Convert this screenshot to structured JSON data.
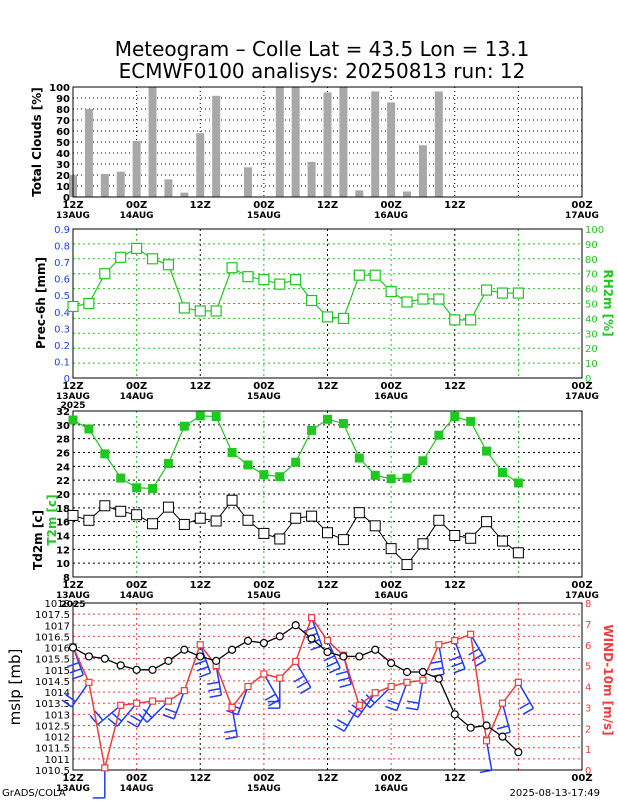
{
  "title_line1": "Meteogram – Colle Lat = 43.5 Lon = 13.1",
  "title_line2": "ECMWF0100 analisys: 20250813 run: 12",
  "footer_left": "GrADS/COLA",
  "footer_right": "2025-08-13-17:49",
  "colors": {
    "black": "#000000",
    "green": "#1ec81e",
    "blue": "#1e3cff",
    "red": "#f03c3c",
    "bar": "#a8a8a8"
  },
  "time_axis": {
    "tick_labels": [
      "12Z",
      "00Z",
      "12Z",
      "00Z",
      "12Z",
      "00Z",
      "12Z",
      "00Z"
    ],
    "date_labels": [
      "13AUG",
      "14AUG",
      "15AUG",
      "16AUG",
      "17AUG"
    ],
    "year_label": "2025"
  },
  "chart_data": [
    {
      "type": "bar",
      "ylabel": "Total Clouds [%]",
      "ylim": [
        0,
        100
      ],
      "yticks": [
        0,
        10,
        20,
        30,
        40,
        50,
        60,
        70,
        80,
        90,
        100
      ],
      "x_hours": [
        0,
        3,
        6,
        9,
        12,
        15,
        18,
        21,
        24,
        27,
        30,
        33,
        36,
        39,
        42,
        45,
        48,
        51,
        54,
        57,
        60,
        63,
        66,
        69,
        72,
        75,
        78,
        81,
        84,
        87,
        90,
        93,
        96
      ],
      "values": [
        20,
        80,
        21,
        23,
        51,
        100,
        16,
        4,
        58,
        92,
        0,
        27,
        0,
        100,
        100,
        32,
        95,
        100,
        6,
        96,
        86,
        5,
        47,
        96,
        0,
        0,
        0,
        0,
        0,
        0,
        0,
        0,
        0
      ]
    },
    {
      "type": "line",
      "ylabel_left": "Prec-6h [mm]",
      "ylabel_right": "RH2m [%]",
      "ylim_left": [
        0,
        0.9
      ],
      "yticks_left": [
        "0",
        "0.1",
        "0.2",
        "0.3",
        "0.4",
        "0.5",
        "0.6",
        "0.7",
        "0.8",
        "0.9"
      ],
      "ylim_right": [
        0,
        100
      ],
      "yticks_right": [
        0,
        10,
        20,
        30,
        40,
        50,
        60,
        70,
        80,
        90,
        100
      ],
      "series": [
        {
          "x_hours": [
            0,
            3,
            6,
            9,
            12,
            15,
            18,
            21,
            24,
            27,
            30,
            33,
            36,
            39,
            42,
            45,
            48,
            51,
            54,
            57,
            60,
            63,
            66,
            69,
            72,
            75,
            78,
            81,
            84,
            87,
            90,
            93,
            96
          ],
          "values": [
            48,
            50,
            70,
            81,
            87,
            80,
            76,
            47,
            45,
            45,
            74,
            68,
            66,
            63,
            66,
            52,
            41,
            40,
            69,
            69,
            58,
            51,
            53,
            53,
            39,
            39,
            59,
            57,
            57,
            null,
            null,
            null,
            null
          ]
        }
      ]
    },
    {
      "type": "line",
      "ylabel": "Td2m [c]",
      "ylabel2": "T2m [c]",
      "ylim": [
        8,
        32
      ],
      "yticks": [
        8,
        10,
        12,
        14,
        16,
        18,
        20,
        22,
        24,
        26,
        28,
        30,
        32
      ],
      "series": [
        {
          "name": "T2m",
          "x_hours": [
            0,
            3,
            6,
            9,
            12,
            15,
            18,
            21,
            24,
            27,
            30,
            33,
            36,
            39,
            42,
            45,
            48,
            51,
            54,
            57,
            60,
            63,
            66,
            69,
            72,
            75,
            78,
            81,
            84
          ],
          "values": [
            30.7,
            29.4,
            25.8,
            22.3,
            20.9,
            20.8,
            24.4,
            29.8,
            31.3,
            31.2,
            26.0,
            24.2,
            22.8,
            22.5,
            24.6,
            29.2,
            30.8,
            30.2,
            25.2,
            22.7,
            22.2,
            22.3,
            24.8,
            28.5,
            31.2,
            30.5,
            26.2,
            23.1,
            21.6
          ]
        },
        {
          "name": "Td2m",
          "x_hours": [
            0,
            3,
            6,
            9,
            12,
            15,
            18,
            21,
            24,
            27,
            30,
            33,
            36,
            39,
            42,
            45,
            48,
            51,
            54,
            57,
            60,
            63,
            66,
            69,
            72,
            75,
            78,
            81,
            84
          ],
          "values": [
            16.9,
            16.2,
            18.3,
            17.5,
            17.0,
            15.7,
            18.1,
            15.6,
            16.5,
            16.1,
            19.1,
            16.2,
            14.3,
            13.5,
            16.5,
            16.8,
            14.4,
            13.4,
            17.3,
            15.4,
            12.1,
            9.8,
            12.8,
            16.2,
            14.0,
            13.6,
            16.0,
            13.2,
            11.5
          ]
        }
      ]
    },
    {
      "type": "line",
      "ylabel_left": "mslp [mb]",
      "ylabel_right": "WIND-10m [m/s]",
      "ylim_left": [
        1010.5,
        1018
      ],
      "yticks_left": [
        "1010.5",
        "1011",
        "1011.5",
        "1012",
        "1012.5",
        "1013",
        "1013.5",
        "1014",
        "1014.5",
        "1015",
        "1015.5",
        "1016",
        "1016.5",
        "1017",
        "1017.5",
        "1018"
      ],
      "ylim_right": [
        0,
        8
      ],
      "yticks_right": [
        0,
        1,
        2,
        3,
        4,
        5,
        6,
        7,
        8
      ],
      "series": [
        {
          "name": "mslp",
          "x_hours": [
            0,
            3,
            6,
            9,
            12,
            15,
            18,
            21,
            24,
            27,
            30,
            33,
            36,
            39,
            42,
            45,
            48,
            51,
            54,
            57,
            60,
            63,
            66,
            69,
            72,
            75,
            78,
            81,
            84
          ],
          "values": [
            1016.0,
            1015.6,
            1015.5,
            1015.2,
            1015.0,
            1015.0,
            1015.4,
            1015.9,
            1015.6,
            1015.4,
            1015.9,
            1016.3,
            1016.2,
            1016.5,
            1017.0,
            1016.4,
            1015.8,
            1015.6,
            1015.6,
            1015.9,
            1015.3,
            1014.9,
            1014.9,
            1014.6,
            1013.0,
            1012.4,
            1012.5,
            1012.0,
            1011.3
          ]
        },
        {
          "name": "wind",
          "x_hours": [
            0,
            3,
            6,
            9,
            12,
            15,
            18,
            21,
            24,
            27,
            30,
            33,
            36,
            39,
            42,
            45,
            48,
            51,
            54,
            57,
            60,
            63,
            66,
            69,
            72,
            75,
            78,
            81,
            84
          ],
          "values": [
            5.9,
            4.2,
            0.1,
            3.1,
            3.2,
            3.3,
            3.3,
            3.8,
            6.0,
            5.0,
            3.0,
            4.0,
            4.6,
            4.4,
            5.2,
            7.3,
            6.2,
            5.5,
            3.1,
            3.7,
            4.0,
            4.2,
            4.3,
            6.0,
            6.2,
            6.5,
            1.4,
            3.2,
            4.2
          ]
        },
        {
          "name": "wind-barbs",
          "x_hours": [
            0,
            3,
            6,
            9,
            12,
            15,
            18,
            21,
            24,
            27,
            30,
            33,
            36,
            39,
            42,
            45,
            48,
            51,
            54,
            57,
            60,
            63,
            66,
            69,
            72,
            75,
            78,
            81,
            84
          ],
          "speed": [
            5.9,
            4.2,
            0.1,
            3.1,
            3.2,
            3.3,
            3.3,
            3.8,
            6.0,
            5.0,
            3.0,
            4.0,
            4.6,
            4.4,
            5.2,
            7.3,
            6.2,
            5.5,
            3.1,
            3.7,
            4.0,
            4.2,
            4.3,
            6.0,
            6.2,
            6.5,
            1.4,
            3.2,
            4.2
          ],
          "angle_deg": [
            160,
            215,
            180,
            230,
            220,
            210,
            225,
            200,
            160,
            170,
            170,
            200,
            150,
            180,
            150,
            160,
            155,
            165,
            210,
            215,
            225,
            200,
            190,
            170,
            160,
            150,
            170,
            165,
            150
          ]
        }
      ]
    }
  ]
}
